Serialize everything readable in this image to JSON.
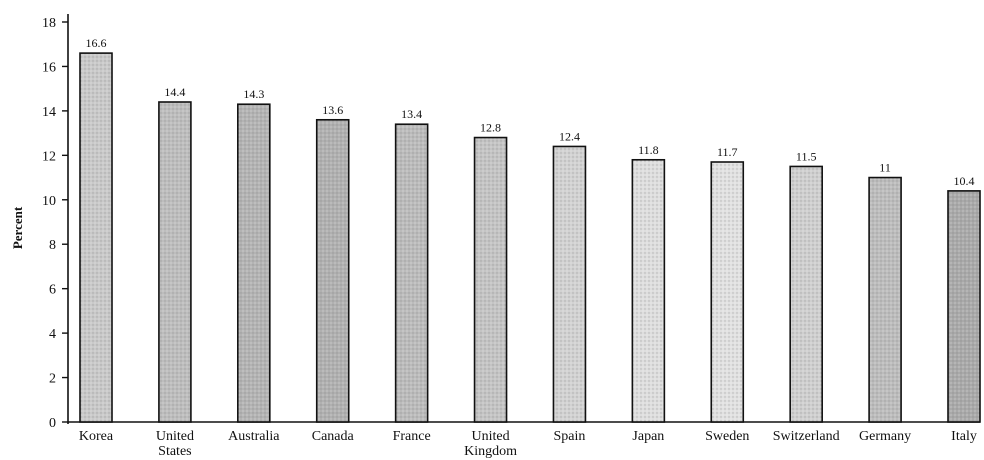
{
  "chart_data": {
    "type": "bar",
    "title": "",
    "xlabel": "",
    "ylabel": "Percent",
    "ylim": [
      0,
      18
    ],
    "yticks": [
      0,
      2,
      4,
      6,
      8,
      10,
      12,
      14,
      16,
      18
    ],
    "grid": false,
    "legend": "none",
    "categories": [
      [
        "Korea"
      ],
      [
        "United",
        "States"
      ],
      [
        "Australia"
      ],
      [
        "Canada"
      ],
      [
        "France"
      ],
      [
        "United",
        "Kingdom"
      ],
      [
        "Spain"
      ],
      [
        "Japan"
      ],
      [
        "Sweden"
      ],
      [
        "Switzerland"
      ],
      [
        "Germany"
      ],
      [
        "Italy"
      ]
    ],
    "values": [
      16.6,
      14.4,
      14.3,
      13.6,
      13.4,
      12.8,
      12.4,
      11.8,
      11.7,
      11.5,
      11,
      10.4
    ],
    "value_labels": [
      "16.6",
      "14.4",
      "14.3",
      "13.6",
      "13.4",
      "12.8",
      "12.4",
      "11.8",
      "11.7",
      "11.5",
      "11",
      "10.4"
    ],
    "colors": {
      "axis": "#111111",
      "bars": [
        "#c9c9c9",
        "#bdbdbd",
        "#b3b3b3",
        "#b0b0b0",
        "#bbbbbb",
        "#c4c4c4",
        "#d2d2d2",
        "#dedede",
        "#e1e1e1",
        "#cfcfcf",
        "#bcbcbc",
        "#a9a9a9"
      ]
    }
  }
}
